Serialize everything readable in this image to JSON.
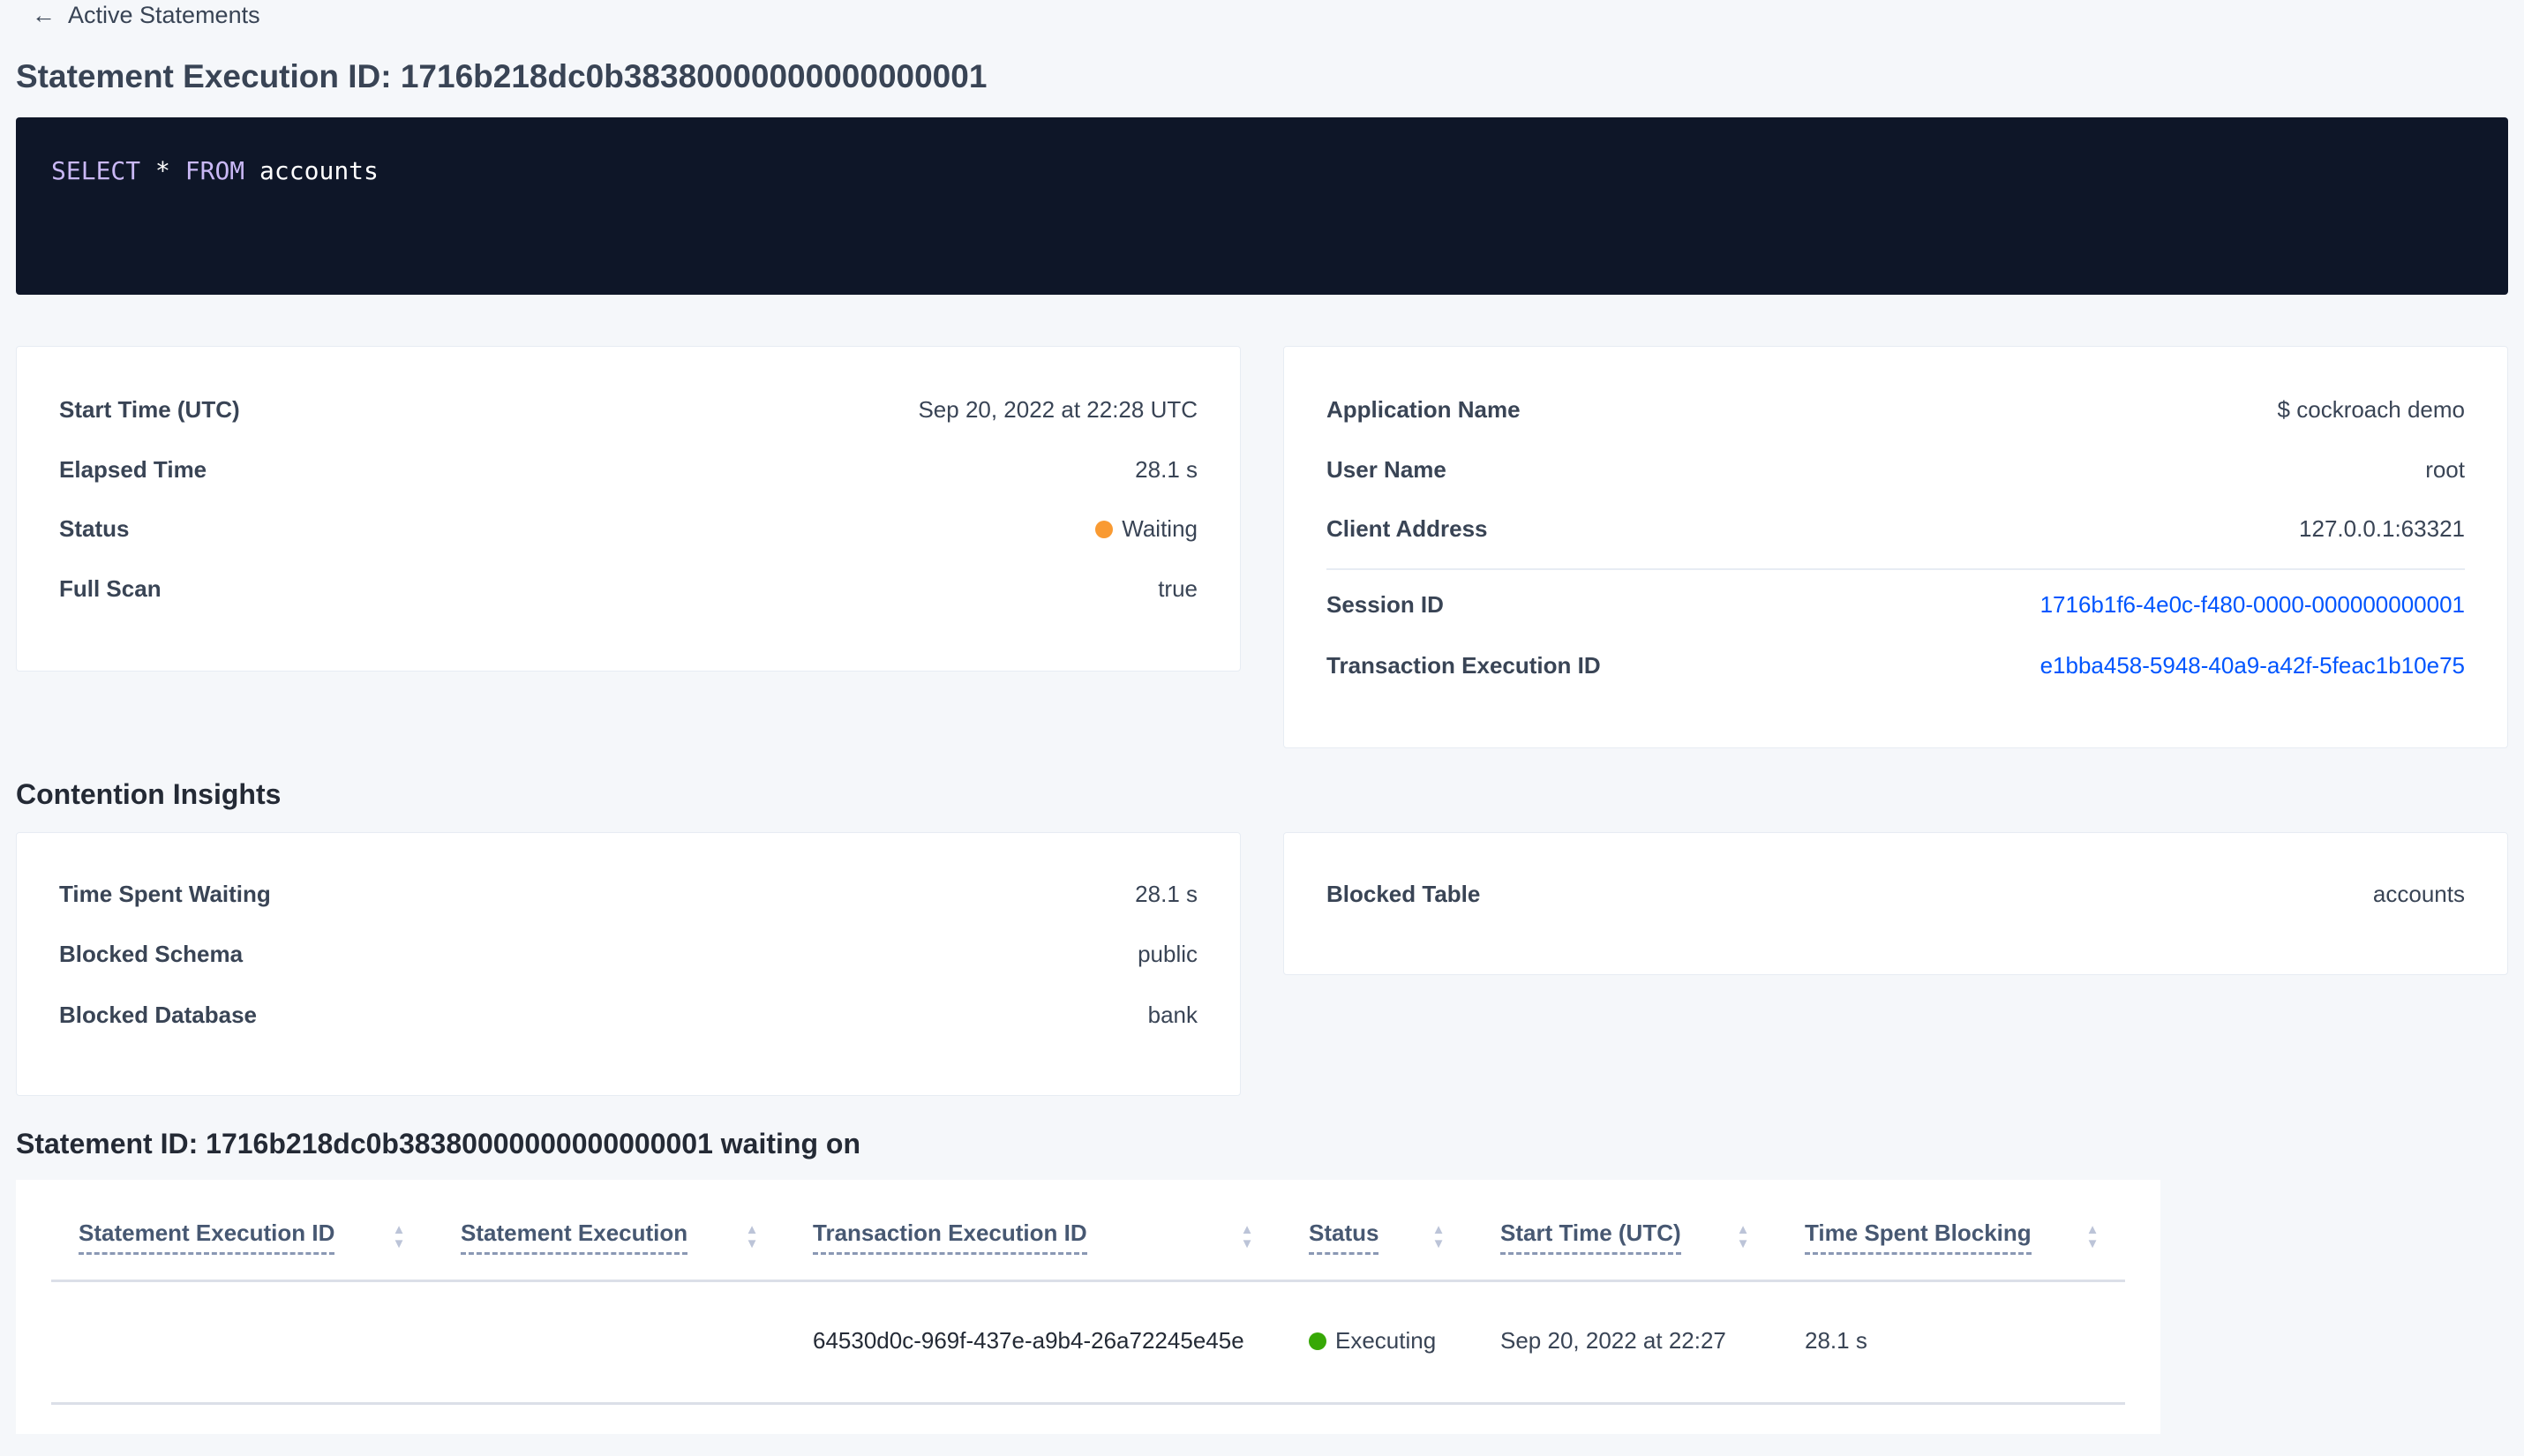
{
  "nav": {
    "back_label": "Active Statements",
    "back_icon": "arrow-left-icon"
  },
  "page": {
    "title": "Statement Execution ID: 1716b218dc0b38380000000000000001"
  },
  "sql": {
    "kw1": "SELECT",
    "star": "*",
    "kw2": "FROM",
    "table": "accounts"
  },
  "details_left": [
    {
      "label": "Start Time (UTC)",
      "value": "Sep 20, 2022 at 22:28 UTC"
    },
    {
      "label": "Elapsed Time",
      "value": "28.1 s"
    },
    {
      "label": "Status",
      "value": "Waiting",
      "status_color": "#f99a32"
    },
    {
      "label": "Full Scan",
      "value": "true"
    }
  ],
  "details_right": [
    {
      "label": "Application Name",
      "value": "$ cockroach demo"
    },
    {
      "label": "User Name",
      "value": "root"
    },
    {
      "label": "Client Address",
      "value": "127.0.0.1:63321"
    },
    {
      "label": "Session ID",
      "value": "1716b1f6-4e0c-f480-0000-000000000001"
    },
    {
      "label": "Transaction Execution ID",
      "value": "e1bba458-5948-40a9-a42f-5feac1b10e75"
    }
  ],
  "contention": {
    "title": "Contention Insights",
    "left": [
      {
        "label": "Time Spent Waiting",
        "value": "28.1 s"
      },
      {
        "label": "Blocked Schema",
        "value": "public"
      },
      {
        "label": "Blocked Database",
        "value": "bank"
      }
    ],
    "right": [
      {
        "label": "Blocked Table",
        "value": "accounts"
      }
    ]
  },
  "waiting": {
    "title": "Statement ID: 1716b218dc0b38380000000000000001 waiting on",
    "columns": [
      "Statement Execution ID",
      "Statement Execution",
      "Transaction Execution ID",
      "Status",
      "Start Time (UTC)",
      "Time Spent Blocking"
    ],
    "rows": [
      {
        "stmt_exec_id": "",
        "stmt_exec": "",
        "txn_exec_id": "64530d0c-969f-437e-a9b4-26a72245e45e",
        "status": "Executing",
        "status_color": "#37a806",
        "start": "Sep 20, 2022 at 22:27",
        "blocking": "28.1 s"
      }
    ]
  }
}
